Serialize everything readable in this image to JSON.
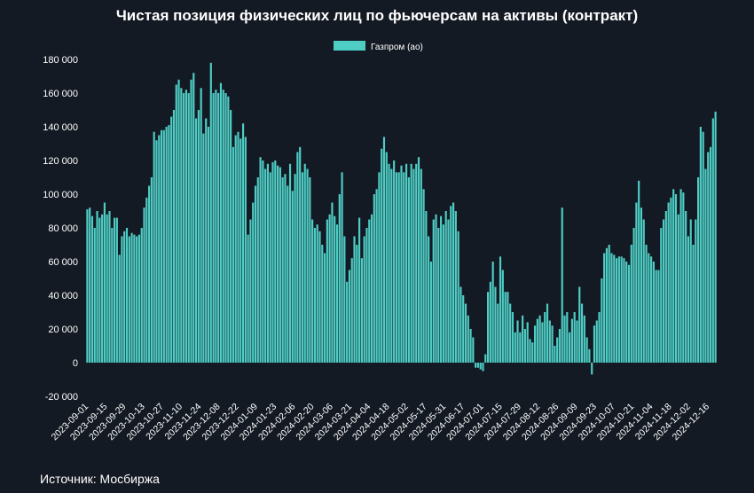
{
  "title": "Чистая позиция физических лиц по фьючерсам на активы  (контракт)",
  "source": "Источник: Мосбиржа",
  "colors": {
    "background": "#141a24",
    "bar": "#4ecdc4",
    "bar_edge": "#ffffff",
    "text": "#ffffff"
  },
  "chart_data": {
    "type": "bar",
    "title": "Чистая позиция физических лиц по фьючерсам на активы  (контракт)",
    "xlabel": "",
    "ylabel": "",
    "ylim": [
      -20000,
      180000
    ],
    "yticks": [
      -20000,
      0,
      20000,
      40000,
      60000,
      80000,
      100000,
      120000,
      140000,
      160000,
      180000
    ],
    "ytick_labels": [
      "-20 000",
      "0",
      "20 000",
      "40 000",
      "60 000",
      "80 000",
      "100 000",
      "120 000",
      "140 000",
      "160 000",
      "180 000"
    ],
    "legend": {
      "position": "top-center",
      "entries": [
        "Газпром (ао)"
      ]
    },
    "grid": false,
    "xtick_labels": [
      "2023-09-01",
      "2023-09-15",
      "2023-09-29",
      "2023-10-13",
      "2023-10-27",
      "2023-11-10",
      "2023-11-24",
      "2023-12-08",
      "2023-12-22",
      "2024-01-09",
      "2024-01-23",
      "2024-02-06",
      "2024-02-20",
      "2024-03-06",
      "2024-03-21",
      "2024-04-04",
      "2024-04-18",
      "2024-05-02",
      "2024-05-17",
      "2024-05-31",
      "2024-06-17",
      "2024-07-01",
      "2024-07-15",
      "2024-07-29",
      "2024-08-12",
      "2024-08-26",
      "2024-09-09",
      "2024-09-23",
      "2024-10-07",
      "2024-10-21",
      "2024-11-04",
      "2024-11-18",
      "2024-12-02",
      "2024-12-16"
    ],
    "series": [
      {
        "name": "Газпром (ао)",
        "values": [
          91000,
          92000,
          87000,
          80000,
          90000,
          86000,
          88000,
          95000,
          88000,
          90000,
          80000,
          86000,
          86000,
          64000,
          75000,
          78000,
          80000,
          75000,
          77000,
          76000,
          75000,
          76000,
          80000,
          92000,
          98000,
          105000,
          110000,
          137000,
          132000,
          135000,
          138000,
          138000,
          140000,
          141000,
          146000,
          150000,
          165000,
          168000,
          163000,
          160000,
          162000,
          160000,
          168000,
          172000,
          145000,
          150000,
          163000,
          136000,
          145000,
          140000,
          178000,
          160000,
          162000,
          160000,
          166000,
          162000,
          160000,
          158000,
          150000,
          128000,
          135000,
          137000,
          133000,
          142000,
          134000,
          76000,
          85000,
          95000,
          105000,
          110000,
          122000,
          120000,
          115000,
          118000,
          113000,
          119000,
          120000,
          117000,
          116000,
          110000,
          112000,
          105000,
          118000,
          102000,
          112000,
          125000,
          128000,
          113000,
          118000,
          115000,
          110000,
          85000,
          80000,
          82000,
          78000,
          70000,
          65000,
          85000,
          88000,
          95000,
          87000,
          82000,
          100000,
          113000,
          75000,
          48000,
          55000,
          62000,
          75000,
          70000,
          86000,
          62000,
          75000,
          80000,
          85000,
          88000,
          100000,
          103000,
          113000,
          127000,
          134000,
          125000,
          118000,
          115000,
          120000,
          113000,
          113000,
          117000,
          113000,
          118000,
          110000,
          118000,
          115000,
          118000,
          122000,
          115000,
          103000,
          90000,
          75000,
          60000,
          85000,
          88000,
          80000,
          87000,
          82000,
          90000,
          85000,
          93000,
          95000,
          90000,
          78000,
          45000,
          40000,
          35000,
          28000,
          20000,
          15000,
          -3000,
          -3000,
          -4000,
          -5000,
          5000,
          42000,
          48000,
          60000,
          45000,
          35000,
          63000,
          55000,
          42000,
          42000,
          35000,
          30000,
          18000,
          25000,
          18000,
          28000,
          20000,
          24000,
          14000,
          12000,
          22000,
          26000,
          28000,
          24000,
          30000,
          35000,
          25000,
          22000,
          10000,
          15000,
          20000,
          92000,
          28000,
          30000,
          18000,
          26000,
          30000,
          25000,
          45000,
          35000,
          28000,
          15000,
          8000,
          -7000,
          22000,
          25000,
          30000,
          50000,
          65000,
          68000,
          70000,
          65000,
          64000,
          62000,
          63000,
          63000,
          62000,
          60000,
          58000,
          70000,
          80000,
          95000,
          108000,
          92000,
          85000,
          70000,
          65000,
          63000,
          60000,
          55000,
          55000,
          80000,
          85000,
          90000,
          95000,
          98000,
          103000,
          100000,
          88000,
          103000,
          101000,
          90000,
          75000,
          85000,
          70000,
          85000,
          110000,
          140000,
          137000,
          115000,
          125000,
          128000,
          145000,
          149000
        ]
      }
    ]
  }
}
